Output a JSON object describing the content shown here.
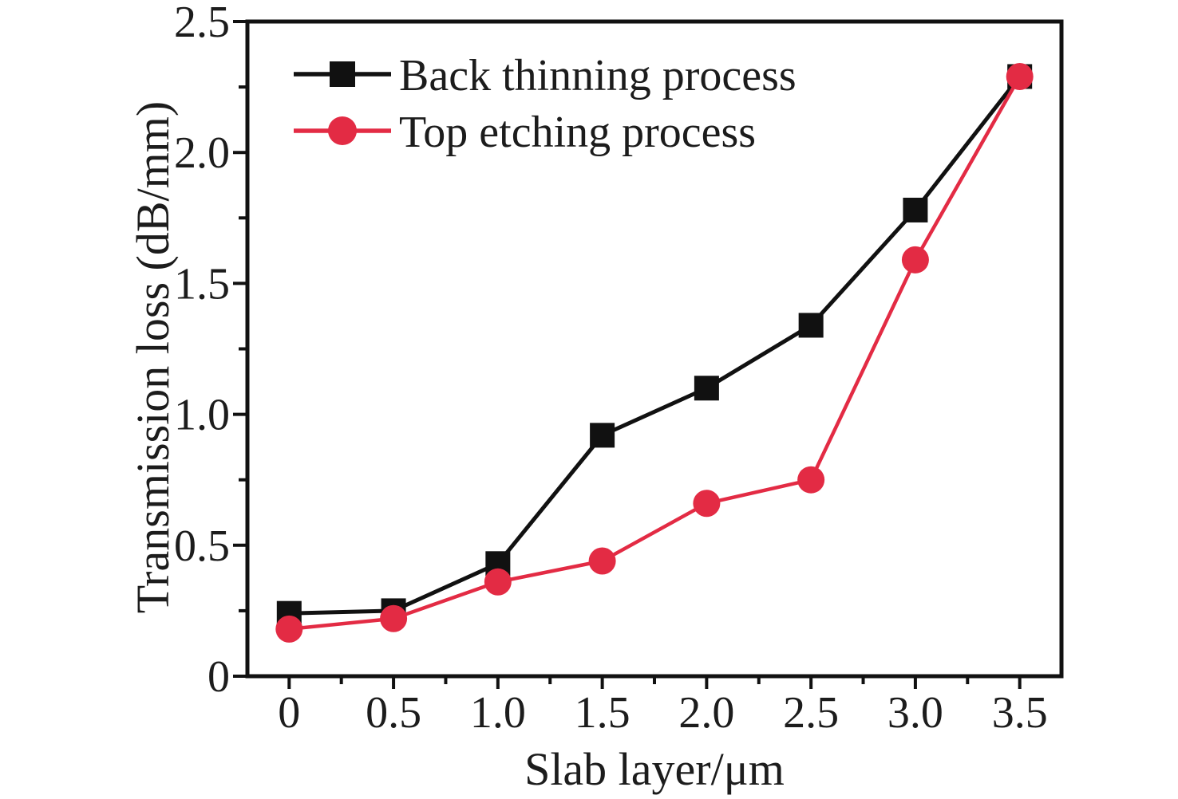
{
  "colors": {
    "background": "#ffffff",
    "axis": "#111111",
    "text": "#1c1c1c",
    "series_back_thinning": "#111111",
    "series_top_etching": "#e32b44"
  },
  "chart_data": {
    "type": "line",
    "title": "",
    "xlabel": "Slab layer/μm",
    "ylabel": "Transmission loss (dB/mm)",
    "x": [
      0,
      0.5,
      1.0,
      1.5,
      2.0,
      2.5,
      3.0,
      3.5
    ],
    "series": [
      {
        "name": "Back thinning process",
        "color": "#111111",
        "marker": "square",
        "values": [
          0.24,
          0.25,
          0.43,
          0.92,
          1.1,
          1.34,
          1.78,
          2.29
        ]
      },
      {
        "name": "Top etching process",
        "color": "#e32b44",
        "marker": "circle",
        "values": [
          0.18,
          0.22,
          0.36,
          0.44,
          0.66,
          0.75,
          1.59,
          2.29
        ]
      }
    ],
    "x_tick_values": [
      0,
      0.5,
      1.0,
      1.5,
      2.0,
      2.5,
      3.0,
      3.5
    ],
    "x_tick_labels": [
      "0",
      "0.5",
      "1.0",
      "1.5",
      "2.0",
      "2.5",
      "3.0",
      "3.5"
    ],
    "y_tick_values": [
      0,
      0.5,
      1.0,
      1.5,
      2.0,
      2.5
    ],
    "y_tick_labels": [
      "0",
      "0.5",
      "1.0",
      "1.5",
      "2.0",
      "2.5"
    ],
    "minor_tick_step": 0.25,
    "xlim": [
      -0.2,
      3.7
    ],
    "ylim": [
      0,
      2.5
    ],
    "grid": false,
    "legend_position": "top-left-inside"
  }
}
